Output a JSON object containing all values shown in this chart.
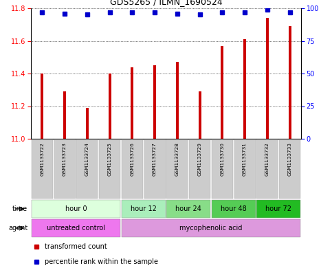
{
  "title": "GDS5265 / ILMN_1690524",
  "samples": [
    "GSM1133722",
    "GSM1133723",
    "GSM1133724",
    "GSM1133725",
    "GSM1133726",
    "GSM1133727",
    "GSM1133728",
    "GSM1133729",
    "GSM1133730",
    "GSM1133731",
    "GSM1133732",
    "GSM1133733"
  ],
  "bar_values": [
    11.4,
    11.29,
    11.19,
    11.4,
    11.44,
    11.45,
    11.47,
    11.29,
    11.57,
    11.61,
    11.74,
    11.69
  ],
  "percentile_values": [
    97,
    96,
    95,
    97,
    97,
    97,
    96,
    95,
    97,
    97,
    99,
    97
  ],
  "bar_color": "#cc0000",
  "percentile_color": "#0000cc",
  "ylim_left": [
    11.0,
    11.8
  ],
  "yticks_left": [
    11.0,
    11.2,
    11.4,
    11.6,
    11.8
  ],
  "ylim_right": [
    0,
    100
  ],
  "yticks_right": [
    0,
    25,
    50,
    75,
    100
  ],
  "time_groups": [
    {
      "label": "hour 0",
      "start": 0,
      "end": 4,
      "color": "#ddffdd"
    },
    {
      "label": "hour 12",
      "start": 4,
      "end": 6,
      "color": "#aaeebb"
    },
    {
      "label": "hour 24",
      "start": 6,
      "end": 8,
      "color": "#88dd88"
    },
    {
      "label": "hour 48",
      "start": 8,
      "end": 10,
      "color": "#55cc55"
    },
    {
      "label": "hour 72",
      "start": 10,
      "end": 12,
      "color": "#22bb22"
    }
  ],
  "agent_groups": [
    {
      "label": "untreated control",
      "start": 0,
      "end": 4,
      "color": "#ee77ee"
    },
    {
      "label": "mycophenolic acid",
      "start": 4,
      "end": 12,
      "color": "#dd99dd"
    }
  ],
  "background_color": "#ffffff",
  "plot_bg_color": "#ffffff",
  "bar_width": 0.12
}
